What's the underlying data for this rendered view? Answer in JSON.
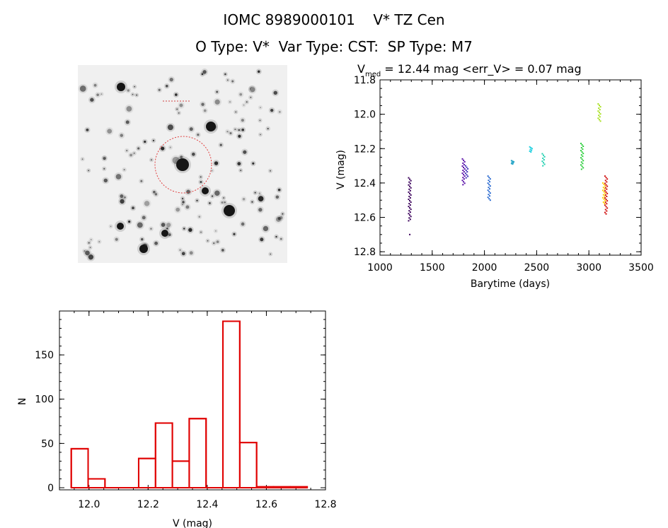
{
  "title_line1": "IOMC 8989000101    V* TZ Cen",
  "title_line2": "O Type: V*  Var Type: CST:  SP Type: M7",
  "chart_data": [
    {
      "type": "scatter",
      "title_main": "V",
      "title_sub": "med",
      "title_rest": " = 12.44 mag <err_V> = 0.07 mag",
      "xlabel": "Barytime (days)",
      "ylabel": "V (mag)",
      "xlim": [
        1000,
        3500
      ],
      "ylim": [
        12.82,
        11.8
      ],
      "x_ticks": [
        1000,
        1500,
        2000,
        2500,
        3000,
        3500
      ],
      "y_ticks": [
        11.8,
        12.0,
        12.2,
        12.4,
        12.6,
        12.8
      ],
      "y_tick_labels": [
        "11.8",
        "12.0",
        "12.2",
        "12.4",
        "12.6",
        "12.8"
      ],
      "groups": [
        {
          "x": 1285,
          "y_min": 12.37,
          "y_max": 12.62,
          "color": "#3a005a",
          "outliers": [
            12.7
          ]
        },
        {
          "x": 1800,
          "y_min": 12.26,
          "y_max": 12.41,
          "color": "#5a10a8",
          "outliers": []
        },
        {
          "x": 1830,
          "y_min": 12.3,
          "y_max": 12.37,
          "color": "#4030b8",
          "outliers": []
        },
        {
          "x": 2045,
          "y_min": 12.36,
          "y_max": 12.5,
          "color": "#2a6ad0",
          "outliers": []
        },
        {
          "x": 2270,
          "y_min": 12.27,
          "y_max": 12.29,
          "color": "#2aa6c8",
          "outliers": []
        },
        {
          "x": 2445,
          "y_min": 12.19,
          "y_max": 12.22,
          "color": "#20d0e0",
          "outliers": []
        },
        {
          "x": 2565,
          "y_min": 12.23,
          "y_max": 12.3,
          "color": "#20d0b0",
          "outliers": []
        },
        {
          "x": 2935,
          "y_min": 12.17,
          "y_max": 12.32,
          "color": "#30d040",
          "outliers": []
        },
        {
          "x": 3100,
          "y_min": 11.94,
          "y_max": 12.04,
          "color": "#a8e020",
          "outliers": []
        },
        {
          "x": 3145,
          "y_min": 12.4,
          "y_max": 12.52,
          "color": "#ffd000",
          "outliers": []
        },
        {
          "x": 3165,
          "y_min": 12.36,
          "y_max": 12.58,
          "color": "#d01010",
          "outliers": []
        }
      ]
    },
    {
      "type": "bar",
      "xlabel": "V (mag)",
      "ylabel": "N",
      "xlim": [
        11.9,
        12.8
      ],
      "ylim": [
        0,
        190
      ],
      "x_ticks": [
        12.0,
        12.2,
        12.4,
        12.6,
        12.8
      ],
      "x_tick_labels": [
        "12.0",
        "12.2",
        "12.4",
        "12.6",
        "12.8"
      ],
      "y_ticks": [
        0,
        50,
        100,
        150
      ],
      "y_tick_labels": [
        "0",
        "50",
        "100",
        "150"
      ],
      "bin_width": 0.057,
      "bins": [
        {
          "x0": 11.94,
          "count": 44
        },
        {
          "x0": 11.997,
          "count": 10
        },
        {
          "x0": 12.054,
          "count": 0
        },
        {
          "x0": 12.111,
          "count": 0
        },
        {
          "x0": 12.168,
          "count": 33
        },
        {
          "x0": 12.225,
          "count": 73
        },
        {
          "x0": 12.282,
          "count": 30
        },
        {
          "x0": 12.339,
          "count": 78
        },
        {
          "x0": 12.396,
          "count": 0
        },
        {
          "x0": 12.453,
          "count": 188
        },
        {
          "x0": 12.51,
          "count": 51
        },
        {
          "x0": 12.567,
          "count": 1
        },
        {
          "x0": 12.624,
          "count": 1
        },
        {
          "x0": 12.681,
          "count": 1
        }
      ],
      "color": "#e00000"
    }
  ],
  "finder_image": {
    "circle_color": "#e04040",
    "star_field_color": "#f0f0f0"
  }
}
